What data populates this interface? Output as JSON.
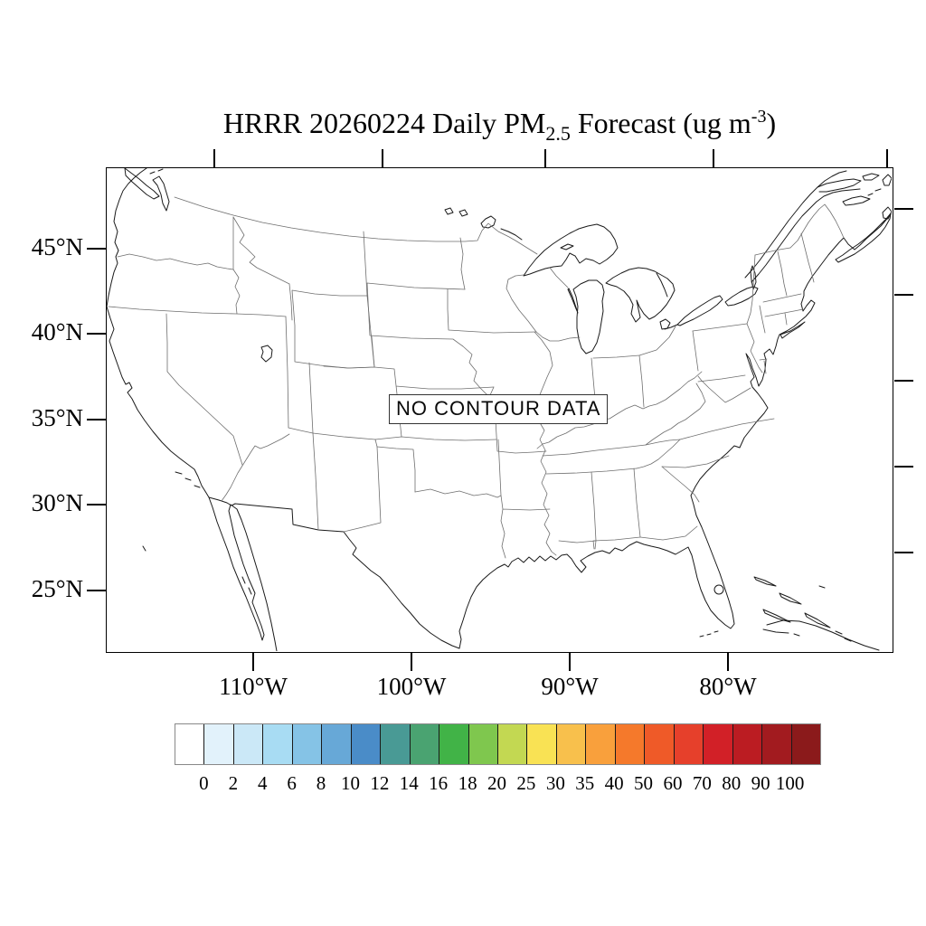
{
  "title": {
    "prefix": "HRRR 20260224 Daily PM",
    "subscript": "2.5",
    "middle": " Forecast (ug m",
    "superscript": "-3",
    "suffix": ")"
  },
  "map": {
    "no_data_label": "NO CONTOUR DATA",
    "lat_axis_labels": [
      "45°N",
      "40°N",
      "35°N",
      "30°N",
      "25°N"
    ],
    "lon_axis_labels": [
      "110°W",
      "100°W",
      "90°W",
      "80°W"
    ],
    "line_colors": {
      "coast": "#1a1a1a",
      "state_borders": "#6e6e6e",
      "frame": "#000000"
    }
  },
  "colorbar": {
    "tick_labels": [
      "0",
      "2",
      "4",
      "6",
      "8",
      "10",
      "12",
      "14",
      "16",
      "18",
      "20",
      "25",
      "30",
      "35",
      "40",
      "50",
      "60",
      "70",
      "80",
      "90",
      "100"
    ],
    "colors": [
      "#ffffff",
      "#e2f2fb",
      "#cbe8f7",
      "#a8dcf3",
      "#85c3e6",
      "#67a8d7",
      "#4a8cc8",
      "#499a95",
      "#4aa371",
      "#41b347",
      "#7fc74e",
      "#c3d852",
      "#f9e254",
      "#f8c04c",
      "#f9a03c",
      "#f5792b",
      "#ef5a28",
      "#e6402b",
      "#d22027",
      "#bb1c22",
      "#a21b1f",
      "#8b1a1b"
    ]
  }
}
